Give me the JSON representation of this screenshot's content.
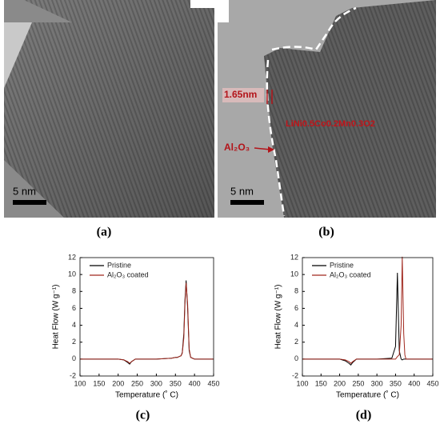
{
  "images": [
    {
      "scale_bar": "5 nm",
      "caption": "(a)"
    },
    {
      "scale_bar": "5 nm",
      "caption": "(b)",
      "thickness": "1.65nm",
      "material": "LiNi0.5Co0.2Mn0.3O2",
      "coating": "Al₂O₃"
    }
  ],
  "chart_data": [
    {
      "type": "line",
      "caption": "(c)",
      "xlabel": "Temperature (˚ C)",
      "ylabel": "Heat Flow (W g⁻¹)",
      "x": [
        100,
        150,
        200,
        215,
        225,
        230,
        235,
        245,
        300,
        340,
        350,
        355,
        360,
        365,
        368,
        372,
        375,
        378,
        382,
        386,
        390,
        400,
        450
      ],
      "series": [
        {
          "name": "Pristine",
          "color": "#000000",
          "values": [
            0,
            0,
            0,
            -0.1,
            -0.4,
            -0.6,
            -0.3,
            0,
            0,
            0.1,
            0.2,
            0.2,
            0.3,
            0.4,
            0.8,
            3,
            7,
            9.3,
            6,
            1,
            0.2,
            0,
            0
          ]
        },
        {
          "name": "Al₂O₃ coated",
          "color": "#a0281e",
          "values": [
            0,
            0,
            0,
            -0.1,
            -0.3,
            -0.5,
            -0.3,
            0,
            0,
            0.1,
            0.2,
            0.2,
            0.3,
            0.4,
            0.7,
            2.5,
            6.5,
            9,
            6.5,
            1.2,
            0.2,
            0,
            0
          ]
        }
      ],
      "xlim": [
        100,
        450
      ],
      "xticks": [
        100,
        150,
        200,
        250,
        300,
        350,
        400,
        450
      ],
      "ylim": [
        -2,
        12
      ],
      "yticks": [
        -2,
        0,
        2,
        4,
        6,
        8,
        10,
        12
      ],
      "legend": "upper left"
    },
    {
      "type": "line",
      "caption": "(d)",
      "xlabel": "Temperature (˚ C)",
      "ylabel": "Heat Flow (W g⁻¹)",
      "x": [
        100,
        150,
        200,
        215,
        225,
        230,
        235,
        245,
        300,
        340,
        350,
        355,
        360,
        365,
        368,
        372,
        375,
        378,
        382,
        386,
        390,
        400,
        450
      ],
      "series": [
        {
          "name": "Pristine",
          "color": "#000000",
          "values": [
            0,
            0,
            0,
            -0.2,
            -0.5,
            -0.7,
            -0.4,
            0,
            0,
            0.1,
            1.5,
            10.2,
            1,
            0,
            -0.1,
            0,
            0,
            0,
            0,
            0,
            0,
            0,
            0
          ]
        },
        {
          "name": "Al₂O₃ coated",
          "color": "#a0281e",
          "values": [
            0,
            0,
            0,
            -0.1,
            -0.3,
            -0.5,
            -0.3,
            0,
            0,
            0,
            0,
            0.3,
            0.5,
            4,
            12.1,
            3,
            0.5,
            0,
            0,
            0,
            0,
            0,
            0
          ]
        }
      ],
      "xlim": [
        100,
        450
      ],
      "xticks": [
        100,
        150,
        200,
        250,
        300,
        350,
        400,
        450
      ],
      "ylim": [
        -2,
        12
      ],
      "yticks": [
        -2,
        0,
        2,
        4,
        6,
        8,
        10,
        12
      ],
      "legend": "upper left"
    }
  ]
}
